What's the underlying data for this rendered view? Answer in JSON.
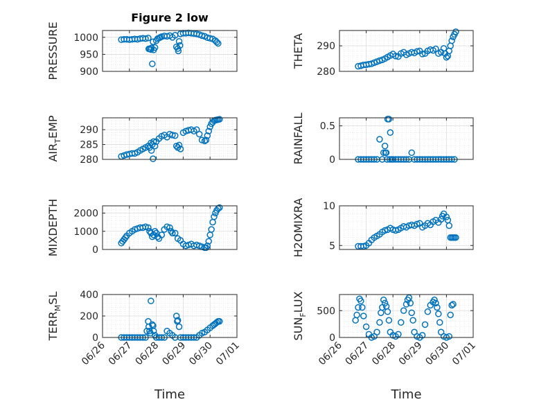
{
  "colors": {
    "marker": "#0072BD",
    "axis": "#262626",
    "grid": "#dcdcdc",
    "background": "#ffffff"
  },
  "chart_data": [
    {
      "id": "pressure",
      "type": "scatter",
      "title": "Figure 2 low",
      "ylabel": "PRESSURE",
      "ylim": [
        900,
        1020
      ],
      "yticks": [
        900,
        950,
        1000
      ],
      "ytick_labels": [
        "900",
        "950",
        "1000"
      ],
      "xlim": [
        0,
        5
      ],
      "xticks": [
        0,
        1,
        2,
        3,
        4,
        5
      ],
      "xtick_labels": [
        "06/26",
        "06/27",
        "06/28",
        "06/29",
        "06/30",
        "07/01"
      ],
      "xlabel": "Time",
      "show_xticklabels": false,
      "grid": true,
      "marker": "circle",
      "x": [
        0.7,
        0.8,
        0.9,
        1.0,
        1.1,
        1.2,
        1.3,
        1.4,
        1.5,
        1.6,
        1.7,
        1.72,
        1.76,
        1.8,
        1.82,
        1.85,
        1.88,
        1.9,
        1.95,
        2.0,
        2.05,
        2.1,
        2.15,
        2.2,
        2.3,
        2.4,
        2.5,
        2.6,
        2.7,
        2.75,
        2.8,
        2.82,
        2.85,
        2.88,
        2.9,
        3.0,
        3.1,
        3.2,
        3.3,
        3.4,
        3.5,
        3.6,
        3.7,
        3.8,
        3.9,
        4.0,
        4.1,
        4.2,
        4.25,
        4.3
      ],
      "y": [
        993,
        994,
        994,
        993,
        994,
        995,
        994,
        996,
        997,
        996,
        998,
        966,
        966,
        964,
        969,
        922,
        987,
        963,
        970,
        990,
        996,
        998,
        1000,
        1002,
        1004,
        1003,
        1005,
        1000,
        1006,
        972,
        967,
        960,
        988,
        976,
        1010,
        1012,
        1012,
        1013,
        1012,
        1011,
        1010,
        1008,
        1005,
        1003,
        999,
        997,
        995,
        990,
        986,
        982
      ]
    },
    {
      "id": "theta",
      "type": "scatter",
      "ylabel": "THETA",
      "ylim": [
        280,
        296
      ],
      "yticks": [
        280,
        290
      ],
      "ytick_labels": [
        "280",
        "290"
      ],
      "xlim": [
        0,
        5
      ],
      "xticks": [
        0,
        1,
        2,
        3,
        4,
        5
      ],
      "xtick_labels": [
        "06/26",
        "06/27",
        "06/28",
        "06/29",
        "06/30",
        "07/01"
      ],
      "xlabel": "Time",
      "show_xticklabels": false,
      "grid": true,
      "marker": "circle",
      "x": [
        0.7,
        0.8,
        0.9,
        1.0,
        1.1,
        1.2,
        1.3,
        1.4,
        1.5,
        1.6,
        1.7,
        1.8,
        1.9,
        2.0,
        2.1,
        2.2,
        2.3,
        2.4,
        2.5,
        2.6,
        2.7,
        2.8,
        2.9,
        3.0,
        3.1,
        3.2,
        3.3,
        3.4,
        3.5,
        3.6,
        3.7,
        3.8,
        3.9,
        3.95,
        4.0,
        4.05,
        4.1,
        4.15,
        4.2,
        4.25,
        4.3,
        4.35
      ],
      "y": [
        282,
        282.2,
        282.5,
        282.6,
        282.8,
        283,
        283.4,
        283.8,
        284.2,
        284.5,
        285,
        285.6,
        286.2,
        286.8,
        286,
        285.8,
        287,
        287.5,
        286.5,
        287,
        287.5,
        287.2,
        287.8,
        288,
        286.8,
        287,
        288,
        288.5,
        288.2,
        288.8,
        287,
        287.5,
        289,
        287,
        285.5,
        286,
        288,
        290,
        292,
        293.5,
        294.5,
        295.5
      ]
    },
    {
      "id": "air_temp",
      "type": "scatter",
      "ylabel": "AIR_TEMP",
      "ylim": [
        280,
        294
      ],
      "yticks": [
        280,
        285,
        290
      ],
      "ytick_labels": [
        "280",
        "285",
        "290"
      ],
      "xlim": [
        0,
        5
      ],
      "xticks": [
        0,
        1,
        2,
        3,
        4,
        5
      ],
      "xtick_labels": [
        "06/26",
        "06/27",
        "06/28",
        "06/29",
        "06/30",
        "07/01"
      ],
      "xlabel": "Time",
      "show_xticklabels": false,
      "grid": true,
      "marker": "circle",
      "x": [
        0.7,
        0.8,
        0.9,
        1.0,
        1.1,
        1.2,
        1.3,
        1.4,
        1.5,
        1.6,
        1.7,
        1.75,
        1.8,
        1.82,
        1.85,
        1.88,
        1.9,
        1.95,
        2.0,
        2.1,
        2.2,
        2.3,
        2.4,
        2.5,
        2.6,
        2.7,
        2.75,
        2.8,
        2.85,
        2.9,
        3.0,
        3.1,
        3.2,
        3.3,
        3.4,
        3.5,
        3.6,
        3.7,
        3.8,
        3.85,
        3.9,
        3.95,
        4.0,
        4.05,
        4.1,
        4.15,
        4.2,
        4.25,
        4.3,
        4.35
      ],
      "y": [
        281,
        281.3,
        281.6,
        281.8,
        282,
        282,
        282.4,
        283,
        283.5,
        284,
        284.5,
        284,
        285.5,
        283,
        285,
        280.2,
        286,
        284.5,
        286,
        287,
        287.8,
        288.2,
        287.5,
        288.5,
        288.2,
        288,
        284.5,
        284,
        284.8,
        283.5,
        289,
        289.5,
        289.8,
        290,
        289.5,
        290,
        288.5,
        286.5,
        286.2,
        286.5,
        288,
        289.5,
        291,
        292,
        292.5,
        293,
        293.2,
        293.3,
        293.4,
        293.5
      ]
    },
    {
      "id": "rainfall",
      "type": "scatter",
      "ylabel": "RAINFALL",
      "ylim": [
        0,
        0.62
      ],
      "yticks": [
        0,
        0.5
      ],
      "ytick_labels": [
        "0",
        "0.5"
      ],
      "xlim": [
        0,
        5
      ],
      "xticks": [
        0,
        1,
        2,
        3,
        4,
        5
      ],
      "xtick_labels": [
        "06/26",
        "06/27",
        "06/28",
        "06/29",
        "06/30",
        "07/01"
      ],
      "xlabel": "Time",
      "show_xticklabels": false,
      "grid": true,
      "marker": "circle",
      "x": [
        0.7,
        0.8,
        0.9,
        1.0,
        1.1,
        1.2,
        1.3,
        1.4,
        1.5,
        1.6,
        1.65,
        1.7,
        1.72,
        1.75,
        1.78,
        1.8,
        1.85,
        1.88,
        1.9,
        1.95,
        2.0,
        2.1,
        2.2,
        2.3,
        2.4,
        2.5,
        2.6,
        2.7,
        2.8,
        2.9,
        3.0,
        3.1,
        3.2,
        3.3,
        3.4,
        3.5,
        3.6,
        3.7,
        3.8,
        3.9,
        4.0,
        4.1,
        4.2,
        4.3
      ],
      "y": [
        0,
        0,
        0,
        0,
        0,
        0,
        0,
        0,
        0.3,
        0,
        0.1,
        0.2,
        0.1,
        0.1,
        0,
        0.6,
        0.6,
        0,
        0.4,
        0,
        0,
        0,
        0,
        0,
        0,
        0,
        0,
        0.1,
        0,
        0,
        0,
        0,
        0,
        0,
        0,
        0,
        0,
        0,
        0,
        0,
        0,
        0,
        0,
        0
      ]
    },
    {
      "id": "mixdepth",
      "type": "scatter",
      "ylabel": "MIXDEPTH",
      "ylim": [
        0,
        2400
      ],
      "yticks": [
        0,
        1000,
        2000
      ],
      "ytick_labels": [
        "0",
        "1000",
        "2000"
      ],
      "xlim": [
        0,
        5
      ],
      "xticks": [
        0,
        1,
        2,
        3,
        4,
        5
      ],
      "xtick_labels": [
        "06/26",
        "06/27",
        "06/28",
        "06/29",
        "06/30",
        "07/01"
      ],
      "xlabel": "Time",
      "show_xticklabels": false,
      "grid": true,
      "marker": "circle",
      "x": [
        0.7,
        0.75,
        0.8,
        0.85,
        0.9,
        1.0,
        1.1,
        1.2,
        1.3,
        1.4,
        1.5,
        1.6,
        1.7,
        1.75,
        1.8,
        1.85,
        1.9,
        1.95,
        2.0,
        2.05,
        2.1,
        2.2,
        2.3,
        2.4,
        2.5,
        2.55,
        2.6,
        2.7,
        2.8,
        2.9,
        3.0,
        3.1,
        3.2,
        3.3,
        3.4,
        3.5,
        3.6,
        3.7,
        3.8,
        3.85,
        3.9,
        3.95,
        4.0,
        4.05,
        4.1,
        4.15,
        4.2,
        4.25,
        4.3,
        4.35
      ],
      "y": [
        350,
        450,
        550,
        650,
        750,
        900,
        1000,
        1100,
        1150,
        1200,
        1200,
        1250,
        1200,
        1000,
        900,
        700,
        800,
        1000,
        900,
        700,
        600,
        800,
        1100,
        1250,
        1200,
        1000,
        900,
        900,
        600,
        500,
        300,
        200,
        250,
        300,
        200,
        250,
        200,
        150,
        100,
        100,
        200,
        450,
        800,
        1100,
        1500,
        1800,
        2000,
        2150,
        2250,
        2300
      ]
    },
    {
      "id": "h2omixra",
      "type": "scatter",
      "ylabel": "H2OMIXRA",
      "ylim": [
        4.5,
        10
      ],
      "yticks": [
        5,
        10
      ],
      "ytick_labels": [
        "5",
        "10"
      ],
      "xlim": [
        0,
        5
      ],
      "xticks": [
        0,
        1,
        2,
        3,
        4,
        5
      ],
      "xtick_labels": [
        "06/26",
        "06/27",
        "06/28",
        "06/29",
        "06/30",
        "07/01"
      ],
      "xlabel": "Time",
      "show_xticklabels": false,
      "grid": true,
      "marker": "circle",
      "x": [
        0.7,
        0.8,
        0.9,
        1.0,
        1.1,
        1.2,
        1.3,
        1.4,
        1.5,
        1.6,
        1.7,
        1.8,
        1.9,
        2.0,
        2.1,
        2.2,
        2.3,
        2.4,
        2.5,
        2.6,
        2.7,
        2.8,
        2.9,
        3.0,
        3.1,
        3.2,
        3.3,
        3.4,
        3.5,
        3.6,
        3.7,
        3.8,
        3.85,
        3.9,
        4.0,
        4.05,
        4.1,
        4.15,
        4.2,
        4.25,
        4.3,
        4.35
      ],
      "y": [
        4.9,
        4.9,
        4.9,
        5,
        5.3,
        5.7,
        6,
        6.2,
        6.4,
        6.7,
        6.9,
        7,
        7.2,
        7,
        6.9,
        7,
        7.2,
        7.4,
        7.3,
        7.5,
        7.6,
        7.5,
        7.7,
        7.8,
        7.3,
        7.5,
        7.8,
        7.6,
        8,
        8.2,
        7.9,
        8.3,
        8.7,
        9,
        8.6,
        8.2,
        7.5,
        6,
        6,
        6,
        6,
        6
      ]
    },
    {
      "id": "terr_msl",
      "type": "scatter",
      "ylabel": "TERR_MSL",
      "ylim": [
        0,
        400
      ],
      "yticks": [
        0,
        200,
        400
      ],
      "ytick_labels": [
        "0",
        "200",
        "400"
      ],
      "xlim": [
        0,
        5
      ],
      "xticks": [
        0,
        1,
        2,
        3,
        4,
        5
      ],
      "xtick_labels": [
        "06/26",
        "06/27",
        "06/28",
        "06/29",
        "06/30",
        "07/01"
      ],
      "xlabel": "Time",
      "show_xticklabels": true,
      "grid": true,
      "marker": "circle",
      "x": [
        0.7,
        0.8,
        0.9,
        1.0,
        1.1,
        1.2,
        1.3,
        1.4,
        1.5,
        1.6,
        1.65,
        1.7,
        1.72,
        1.75,
        1.78,
        1.8,
        1.85,
        1.88,
        1.9,
        1.95,
        2.0,
        2.1,
        2.2,
        2.3,
        2.4,
        2.5,
        2.6,
        2.7,
        2.75,
        2.78,
        2.8,
        2.85,
        2.9,
        3.0,
        3.1,
        3.2,
        3.3,
        3.4,
        3.5,
        3.6,
        3.7,
        3.8,
        3.9,
        4.0,
        4.1,
        4.15,
        4.2,
        4.25,
        4.3,
        4.35
      ],
      "y": [
        0,
        0,
        0,
        0,
        0,
        0,
        0,
        0,
        0,
        0,
        60,
        150,
        100,
        60,
        40,
        340,
        120,
        110,
        60,
        20,
        0,
        0,
        0,
        0,
        60,
        40,
        20,
        0,
        200,
        150,
        160,
        100,
        0,
        0,
        0,
        0,
        0,
        0,
        0,
        20,
        40,
        50,
        70,
        90,
        110,
        120,
        130,
        140,
        150,
        150
      ]
    },
    {
      "id": "sun_flux",
      "type": "scatter",
      "ylabel": "SUN_FLUX",
      "ylim": [
        0,
        800
      ],
      "yticks": [
        0,
        500
      ],
      "ytick_labels": [
        "0",
        "500"
      ],
      "xlim": [
        0,
        5
      ],
      "xticks": [
        0,
        1,
        2,
        3,
        4,
        5
      ],
      "xtick_labels": [
        "06/26",
        "06/27",
        "06/28",
        "06/29",
        "06/30",
        "07/01"
      ],
      "xlabel": "Time",
      "show_xticklabels": true,
      "grid": true,
      "marker": "circle",
      "x": [
        0.6,
        0.65,
        0.7,
        0.75,
        0.8,
        0.85,
        0.9,
        1.0,
        1.1,
        1.2,
        1.3,
        1.4,
        1.5,
        1.55,
        1.6,
        1.65,
        1.7,
        1.75,
        1.8,
        1.85,
        1.9,
        2.0,
        2.1,
        2.2,
        2.3,
        2.4,
        2.5,
        2.55,
        2.6,
        2.65,
        2.7,
        2.75,
        2.8,
        2.9,
        3.0,
        3.1,
        3.2,
        3.3,
        3.4,
        3.5,
        3.55,
        3.6,
        3.65,
        3.7,
        3.75,
        3.8,
        3.9,
        4.0,
        4.1,
        4.15,
        4.2,
        4.25
      ],
      "y": [
        320,
        420,
        560,
        720,
        680,
        560,
        400,
        200,
        60,
        0,
        20,
        100,
        280,
        460,
        560,
        700,
        640,
        580,
        480,
        320,
        100,
        40,
        20,
        60,
        280,
        500,
        620,
        700,
        740,
        640,
        460,
        320,
        100,
        20,
        0,
        40,
        240,
        480,
        600,
        660,
        700,
        640,
        560,
        440,
        280,
        100,
        20,
        0,
        20,
        420,
        600,
        620
      ]
    }
  ]
}
